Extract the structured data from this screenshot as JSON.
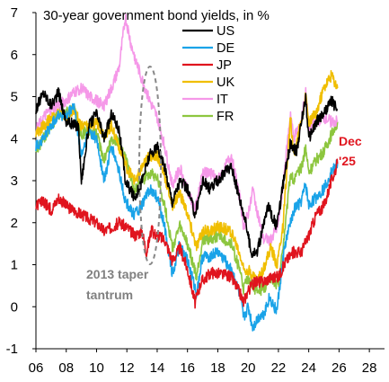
{
  "chart_data": {
    "type": "line",
    "title": "30-year government bond yields, in %",
    "xlabel": "",
    "ylabel": "",
    "xlim": [
      2006,
      2029
    ],
    "ylim": [
      -1,
      7
    ],
    "x_ticks": [
      6,
      8,
      10,
      12,
      14,
      16,
      18,
      20,
      22,
      24,
      26,
      28
    ],
    "x_tick_labels": [
      "06",
      "08",
      "10",
      "12",
      "14",
      "16",
      "18",
      "20",
      "22",
      "24",
      "26",
      "28"
    ],
    "y_ticks": [
      -1,
      0,
      1,
      2,
      3,
      4,
      5,
      6,
      7
    ],
    "y_tick_labels": [
      "-1",
      "0",
      "1",
      "2",
      "3",
      "4",
      "5",
      "6",
      "7"
    ],
    "grid": false,
    "legend_placement": "top-center",
    "series": [
      {
        "name": "US",
        "color": "#000000",
        "points": [
          [
            2006,
            4.7
          ],
          [
            2006.5,
            5.1
          ],
          [
            2007,
            4.8
          ],
          [
            2007.5,
            5.1
          ],
          [
            2008,
            4.4
          ],
          [
            2008.8,
            4.3
          ],
          [
            2009,
            3.0
          ],
          [
            2009.5,
            4.3
          ],
          [
            2010,
            4.6
          ],
          [
            2010.5,
            4.0
          ],
          [
            2011,
            4.6
          ],
          [
            2011.5,
            4.2
          ],
          [
            2011.9,
            3.0
          ],
          [
            2012.5,
            2.6
          ],
          [
            2012.9,
            2.9
          ],
          [
            2013.5,
            3.6
          ],
          [
            2014,
            3.8
          ],
          [
            2014.5,
            3.3
          ],
          [
            2015,
            2.5
          ],
          [
            2015.5,
            3.0
          ],
          [
            2016,
            2.8
          ],
          [
            2016.5,
            2.2
          ],
          [
            2017,
            3.0
          ],
          [
            2017.5,
            2.8
          ],
          [
            2018,
            3.0
          ],
          [
            2018.9,
            3.35
          ],
          [
            2019.5,
            2.5
          ],
          [
            2019.8,
            2.1
          ],
          [
            2020.2,
            1.3
          ],
          [
            2020.6,
            1.3
          ],
          [
            2021,
            1.9
          ],
          [
            2021.3,
            2.4
          ],
          [
            2021.9,
            1.9
          ],
          [
            2022.3,
            2.9
          ],
          [
            2022.8,
            3.9
          ],
          [
            2023.2,
            3.7
          ],
          [
            2023.8,
            5.0
          ],
          [
            2024,
            4.0
          ],
          [
            2024.5,
            4.4
          ],
          [
            2025,
            4.6
          ],
          [
            2025.5,
            4.9
          ],
          [
            2025.9,
            4.7
          ]
        ]
      },
      {
        "name": "DE",
        "color": "#1aa3e8",
        "points": [
          [
            2006,
            3.8
          ],
          [
            2006.5,
            4.0
          ],
          [
            2007,
            4.3
          ],
          [
            2007.5,
            4.6
          ],
          [
            2008,
            4.5
          ],
          [
            2008.5,
            4.8
          ],
          [
            2009,
            3.6
          ],
          [
            2009.5,
            4.2
          ],
          [
            2010,
            4.0
          ],
          [
            2010.5,
            3.0
          ],
          [
            2011,
            3.8
          ],
          [
            2011.5,
            3.2
          ],
          [
            2011.9,
            2.5
          ],
          [
            2012.5,
            2.2
          ],
          [
            2013,
            2.4
          ],
          [
            2013.5,
            2.8
          ],
          [
            2014,
            2.6
          ],
          [
            2014.5,
            1.9
          ],
          [
            2015,
            0.8
          ],
          [
            2015.5,
            1.5
          ],
          [
            2016,
            1.1
          ],
          [
            2016.6,
            0.3
          ],
          [
            2017,
            1.2
          ],
          [
            2017.5,
            1.2
          ],
          [
            2018,
            1.3
          ],
          [
            2018.9,
            0.9
          ],
          [
            2019.5,
            0.2
          ],
          [
            2019.7,
            -0.3
          ],
          [
            2020,
            0.0
          ],
          [
            2020.3,
            -0.5
          ],
          [
            2020.8,
            -0.2
          ],
          [
            2021,
            -0.2
          ],
          [
            2021.4,
            0.2
          ],
          [
            2021.9,
            -0.1
          ],
          [
            2022.4,
            1.4
          ],
          [
            2022.8,
            2.0
          ],
          [
            2023,
            2.3
          ],
          [
            2023.5,
            2.5
          ],
          [
            2023.8,
            2.9
          ],
          [
            2024,
            2.4
          ],
          [
            2024.5,
            2.6
          ],
          [
            2025,
            2.8
          ],
          [
            2025.5,
            3.2
          ],
          [
            2025.9,
            3.4
          ]
        ]
      },
      {
        "name": "JP",
        "color": "#e0141e",
        "points": [
          [
            2006,
            2.4
          ],
          [
            2006.5,
            2.5
          ],
          [
            2007,
            2.3
          ],
          [
            2007.5,
            2.6
          ],
          [
            2008,
            2.4
          ],
          [
            2008.5,
            2.3
          ],
          [
            2009,
            2.2
          ],
          [
            2009.5,
            2.1
          ],
          [
            2010,
            2.0
          ],
          [
            2010.5,
            1.8
          ],
          [
            2011,
            1.9
          ],
          [
            2011.5,
            2.0
          ],
          [
            2012,
            1.9
          ],
          [
            2012.5,
            1.7
          ],
          [
            2013,
            1.8
          ],
          [
            2013.3,
            1.3
          ],
          [
            2013.6,
            1.8
          ],
          [
            2014,
            1.7
          ],
          [
            2014.5,
            1.6
          ],
          [
            2015,
            1.1
          ],
          [
            2015.5,
            1.4
          ],
          [
            2016,
            0.9
          ],
          [
            2016.5,
            0.1
          ],
          [
            2016.9,
            0.6
          ],
          [
            2017.5,
            0.8
          ],
          [
            2018,
            0.8
          ],
          [
            2018.9,
            0.7
          ],
          [
            2019.5,
            0.3
          ],
          [
            2019.7,
            0.1
          ],
          [
            2020,
            0.4
          ],
          [
            2020.5,
            0.6
          ],
          [
            2021,
            0.6
          ],
          [
            2021.5,
            0.7
          ],
          [
            2022,
            0.7
          ],
          [
            2022.5,
            1.1
          ],
          [
            2023,
            1.3
          ],
          [
            2023.5,
            1.3
          ],
          [
            2024,
            1.7
          ],
          [
            2024.5,
            2.2
          ],
          [
            2025,
            2.4
          ],
          [
            2025.5,
            3.0
          ],
          [
            2025.9,
            3.4
          ]
        ]
      },
      {
        "name": "UK",
        "color": "#f0be00",
        "points": [
          [
            2006,
            4.1
          ],
          [
            2006.5,
            4.3
          ],
          [
            2007,
            4.5
          ],
          [
            2007.5,
            4.6
          ],
          [
            2008,
            4.5
          ],
          [
            2008.5,
            4.7
          ],
          [
            2009,
            4.3
          ],
          [
            2009.5,
            4.3
          ],
          [
            2010,
            4.4
          ],
          [
            2010.5,
            4.1
          ],
          [
            2011,
            4.3
          ],
          [
            2011.5,
            3.8
          ],
          [
            2012,
            3.3
          ],
          [
            2012.5,
            3.0
          ],
          [
            2013,
            3.3
          ],
          [
            2013.5,
            3.6
          ],
          [
            2014,
            3.6
          ],
          [
            2014.5,
            3.1
          ],
          [
            2015,
            2.4
          ],
          [
            2015.5,
            2.7
          ],
          [
            2016,
            2.2
          ],
          [
            2016.6,
            1.4
          ],
          [
            2017,
            1.8
          ],
          [
            2017.5,
            1.8
          ],
          [
            2018,
            1.9
          ],
          [
            2018.9,
            1.8
          ],
          [
            2019.5,
            1.2
          ],
          [
            2019.7,
            0.9
          ],
          [
            2020,
            0.9
          ],
          [
            2020.6,
            0.6
          ],
          [
            2021,
            0.9
          ],
          [
            2021.5,
            1.4
          ],
          [
            2021.9,
            1.0
          ],
          [
            2022.3,
            1.9
          ],
          [
            2022.8,
            4.5
          ],
          [
            2023,
            3.6
          ],
          [
            2023.5,
            4.4
          ],
          [
            2023.8,
            5.0
          ],
          [
            2024,
            4.4
          ],
          [
            2024.5,
            4.6
          ],
          [
            2025,
            5.2
          ],
          [
            2025.5,
            5.5
          ],
          [
            2025.9,
            5.2
          ]
        ]
      },
      {
        "name": "IT",
        "color": "#f598e8",
        "points": [
          [
            2006,
            4.2
          ],
          [
            2006.5,
            4.5
          ],
          [
            2007,
            4.7
          ],
          [
            2007.5,
            4.8
          ],
          [
            2008,
            4.9
          ],
          [
            2008.5,
            5.1
          ],
          [
            2009,
            5.2
          ],
          [
            2009.5,
            5.0
          ],
          [
            2010,
            4.9
          ],
          [
            2010.5,
            4.8
          ],
          [
            2011,
            5.2
          ],
          [
            2011.5,
            5.7
          ],
          [
            2011.9,
            6.9
          ],
          [
            2012.3,
            6.2
          ],
          [
            2012.9,
            5.5
          ],
          [
            2013.5,
            4.9
          ],
          [
            2014,
            4.5
          ],
          [
            2014.5,
            3.8
          ],
          [
            2015,
            2.9
          ],
          [
            2015.5,
            3.3
          ],
          [
            2016,
            2.8
          ],
          [
            2016.5,
            2.3
          ],
          [
            2017,
            3.2
          ],
          [
            2017.5,
            3.2
          ],
          [
            2018,
            3.0
          ],
          [
            2018.9,
            3.6
          ],
          [
            2019.5,
            2.5
          ],
          [
            2019.7,
            1.9
          ],
          [
            2020,
            2.2
          ],
          [
            2020.3,
            2.8
          ],
          [
            2021,
            1.6
          ],
          [
            2021.5,
            1.6
          ],
          [
            2022,
            2.0
          ],
          [
            2022.3,
            2.9
          ],
          [
            2022.8,
            4.6
          ],
          [
            2023,
            4.0
          ],
          [
            2023.5,
            4.4
          ],
          [
            2023.8,
            5.1
          ],
          [
            2024,
            4.3
          ],
          [
            2024.5,
            4.4
          ],
          [
            2025,
            4.5
          ],
          [
            2025.5,
            4.4
          ],
          [
            2025.9,
            4.4
          ]
        ]
      },
      {
        "name": "FR",
        "color": "#8dc63f",
        "points": [
          [
            2006,
            3.7
          ],
          [
            2006.5,
            4.0
          ],
          [
            2007,
            4.3
          ],
          [
            2007.5,
            4.6
          ],
          [
            2008,
            4.6
          ],
          [
            2008.5,
            4.7
          ],
          [
            2009,
            4.1
          ],
          [
            2009.5,
            4.2
          ],
          [
            2010,
            4.1
          ],
          [
            2010.5,
            3.5
          ],
          [
            2011,
            4.0
          ],
          [
            2011.5,
            3.9
          ],
          [
            2012,
            3.4
          ],
          [
            2012.5,
            2.8
          ],
          [
            2013,
            3.0
          ],
          [
            2013.5,
            3.2
          ],
          [
            2014,
            3.1
          ],
          [
            2014.5,
            2.4
          ],
          [
            2015,
            1.4
          ],
          [
            2015.5,
            1.9
          ],
          [
            2016,
            1.5
          ],
          [
            2016.6,
            0.7
          ],
          [
            2017,
            1.6
          ],
          [
            2017.5,
            1.6
          ],
          [
            2018,
            1.7
          ],
          [
            2018.9,
            1.5
          ],
          [
            2019.5,
            0.8
          ],
          [
            2019.7,
            0.4
          ],
          [
            2020,
            0.7
          ],
          [
            2020.5,
            0.4
          ],
          [
            2021,
            0.4
          ],
          [
            2021.5,
            0.7
          ],
          [
            2022,
            0.5
          ],
          [
            2022.5,
            2.1
          ],
          [
            2022.8,
            3.2
          ],
          [
            2023,
            3.0
          ],
          [
            2023.5,
            3.3
          ],
          [
            2023.8,
            3.8
          ],
          [
            2024,
            3.2
          ],
          [
            2024.5,
            3.5
          ],
          [
            2025,
            3.7
          ],
          [
            2025.5,
            4.1
          ],
          [
            2025.9,
            4.4
          ]
        ]
      }
    ],
    "annotations": [
      {
        "text": "2013 taper",
        "color": "#808080"
      },
      {
        "text": "tantrum",
        "color": "#808080"
      },
      {
        "text": "Dec",
        "color": "#e0141e"
      },
      {
        "text": "'25",
        "color": "#e0141e"
      }
    ]
  }
}
